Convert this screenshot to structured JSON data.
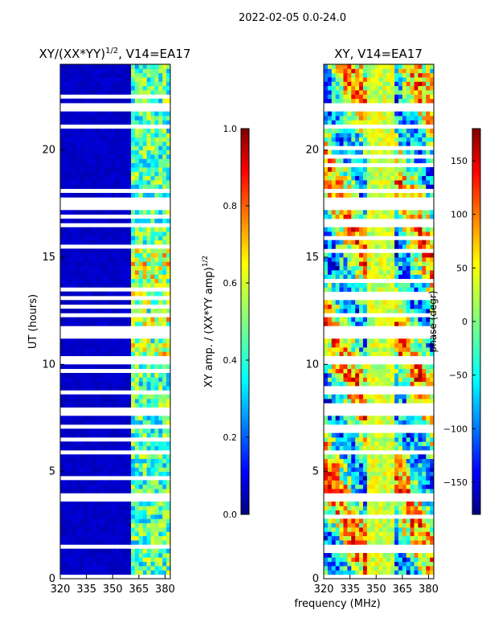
{
  "suptitle": "2022-02-05 0.0-24.0",
  "chart_data": [
    {
      "type": "heatmap",
      "title_prefix": "XY/(XX*YY)",
      "title_sup": "1/2",
      "title_suffix": ", V14=EA17",
      "xlabel": "",
      "ylabel": "UT (hours)",
      "xlim": [
        320,
        383
      ],
      "ylim": [
        0,
        24
      ],
      "xticks": [
        320,
        335,
        350,
        365,
        380
      ],
      "yticks": [
        0,
        5,
        10,
        15,
        20
      ],
      "colorbar": {
        "label_prefix": "XY amp. / (XX*YY amp)",
        "label_sup": "1/2",
        "range": [
          0.0,
          1.0
        ],
        "ticks": [
          "0.0",
          "0.2",
          "0.4",
          "0.6",
          "0.8",
          "1.0"
        ],
        "colormap": "jet"
      },
      "description_values": {
        "low_band_mhz": [
          320,
          360
        ],
        "low_band_level": 0.05,
        "high_band_mhz": [
          360,
          383
        ],
        "high_band_level": 0.45
      }
    },
    {
      "type": "heatmap",
      "title": "XY, V14=EA17",
      "xlabel": "frequency (MHz)",
      "ylabel": "",
      "xlim": [
        320,
        383
      ],
      "ylim": [
        0,
        24
      ],
      "xticks": [
        320,
        335,
        350,
        365,
        380
      ],
      "yticks": [
        0,
        5,
        10,
        15,
        20
      ],
      "colorbar": {
        "label": "phase (degr)",
        "range": [
          -180,
          180
        ],
        "ticks": [
          "150",
          "100",
          "50",
          "0",
          "−50",
          "−100",
          "−150"
        ],
        "tick_values": [
          150,
          100,
          50,
          0,
          -50,
          -100,
          -150
        ],
        "colormap": "jet"
      }
    }
  ]
}
